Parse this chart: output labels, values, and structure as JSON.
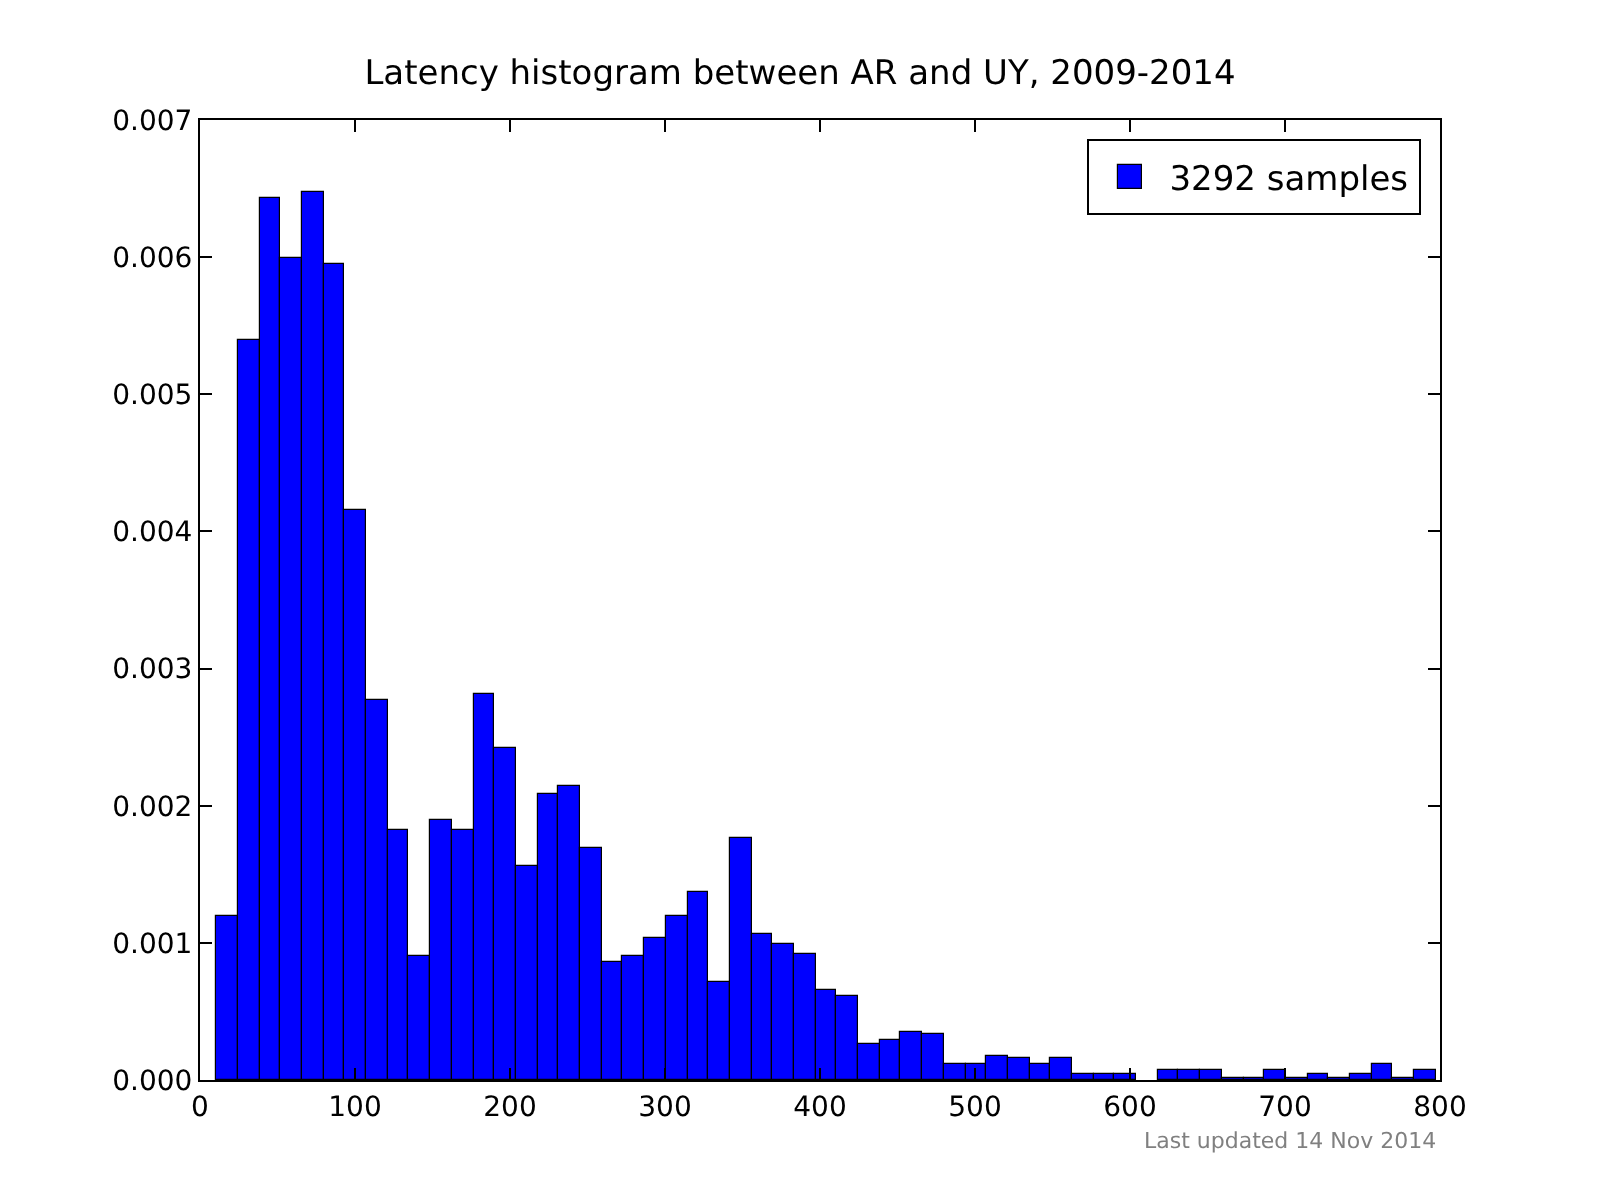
{
  "chart_data": {
    "type": "histogram",
    "title": "Latency histogram between AR and UY, 2009-2014",
    "bins": [
      10.6,
      24.4,
      38.2,
      52.0,
      65.8,
      79.6,
      93.4,
      107.2,
      121.0,
      134.8,
      148.6,
      162.4,
      176.2,
      190.0,
      203.8,
      217.6,
      231.4,
      245.2,
      259.0,
      272.8,
      286.6,
      300.4,
      314.2,
      328.0,
      341.8,
      355.6,
      369.4,
      383.2,
      397.0,
      410.8,
      424.6,
      438.4,
      452.2,
      466.0,
      479.8,
      493.6,
      507.4,
      521.2,
      535.0,
      548.8,
      562.6,
      576.4,
      590.2,
      604.0,
      617.8,
      631.6,
      645.4,
      659.2,
      673.0,
      686.8,
      700.6,
      714.4,
      728.2,
      742.0,
      755.8,
      769.6,
      783.4,
      797.2
    ],
    "series": [
      {
        "name": "3292 samples",
        "color": "#0000ff",
        "values": [
          0.00119,
          0.00539,
          0.00643,
          0.00599,
          0.00647,
          0.00595,
          0.00415,
          0.00277,
          0.00182,
          0.0009,
          0.00189,
          0.00182,
          0.00281,
          0.00242,
          0.00156,
          0.00209,
          0.00214,
          0.00169,
          0.00086,
          0.0009,
          0.00103,
          0.00119,
          0.00137,
          0.00072,
          0.00177,
          0.00107,
          0.00099,
          0.00092,
          0.00066,
          0.00061,
          0.00026,
          0.00029,
          0.00035,
          0.00033,
          0.00011,
          0.00011,
          0.00017,
          0.00016,
          0.00011,
          0.00016,
          4e-05,
          4e-05,
          4e-05,
          0,
          7e-05,
          7e-05,
          7e-05,
          2e-05,
          2e-05,
          7e-05,
          2e-05,
          4e-05,
          2e-05,
          4e-05,
          0.00011,
          2e-05,
          7e-05
        ]
      }
    ],
    "xlim": [
      0,
      800
    ],
    "xticks": [
      0,
      100,
      200,
      300,
      400,
      500,
      600,
      700,
      800
    ],
    "ylim": [
      0,
      0.007
    ],
    "yticks": [
      {
        "value": 0,
        "label": "0.000"
      },
      {
        "value": 0.001,
        "label": "0.001"
      },
      {
        "value": 0.002,
        "label": "0.002"
      },
      {
        "value": 0.003,
        "label": "0.003"
      },
      {
        "value": 0.004,
        "label": "0.004"
      },
      {
        "value": 0.005,
        "label": "0.005"
      },
      {
        "value": 0.006,
        "label": "0.006"
      },
      {
        "value": 0.007,
        "label": "0.007"
      }
    ],
    "legend": "top right",
    "grid": false,
    "annotations": [
      "Last updated 14 Nov 2014"
    ]
  }
}
